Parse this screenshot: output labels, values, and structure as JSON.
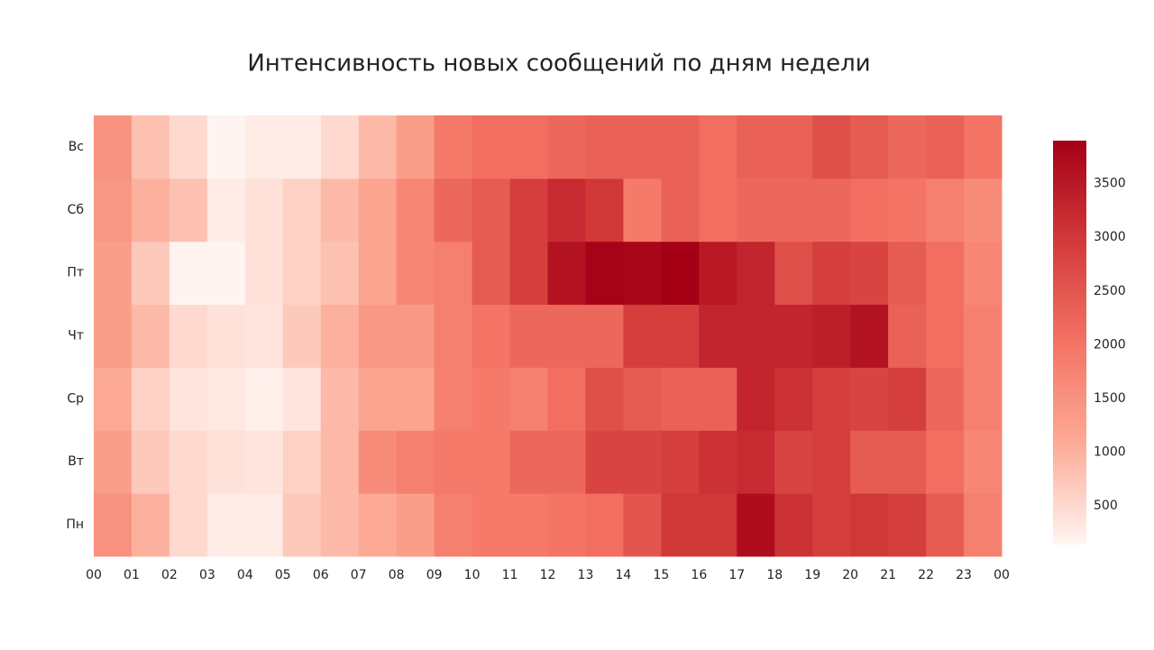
{
  "chart_data": {
    "type": "heatmap",
    "title": "Интенсивность новых сообщений по дням недели",
    "categories": [
      "Пн",
      "Вт",
      "Ср",
      "Чт",
      "Пт",
      "Сб",
      "Вс"
    ],
    "xlim": [
      0,
      24
    ],
    "xticks": [
      {
        "value": 0,
        "label": "00"
      },
      {
        "value": 1,
        "label": "01"
      },
      {
        "value": 2,
        "label": "02"
      },
      {
        "value": 3,
        "label": "03"
      },
      {
        "value": 4,
        "label": "04"
      },
      {
        "value": 5,
        "label": "05"
      },
      {
        "value": 6,
        "label": "06"
      },
      {
        "value": 7,
        "label": "07"
      },
      {
        "value": 8,
        "label": "08"
      },
      {
        "value": 9,
        "label": "09"
      },
      {
        "value": 10,
        "label": "10"
      },
      {
        "value": 11,
        "label": "11"
      },
      {
        "value": 12,
        "label": "12"
      },
      {
        "value": 13,
        "label": "13"
      },
      {
        "value": 14,
        "label": "14"
      },
      {
        "value": 15,
        "label": "15"
      },
      {
        "value": 16,
        "label": "16"
      },
      {
        "value": 17,
        "label": "17"
      },
      {
        "value": 18,
        "label": "18"
      },
      {
        "value": 19,
        "label": "19"
      },
      {
        "value": 20,
        "label": "20"
      },
      {
        "value": 21,
        "label": "21"
      },
      {
        "value": 22,
        "label": "22"
      },
      {
        "value": 23,
        "label": "23"
      },
      {
        "value": 24,
        "label": "00"
      }
    ],
    "z": [
      [
        1500,
        1000,
        500,
        250,
        250,
        700,
        900,
        1100,
        1300,
        1800,
        1900,
        1900,
        2000,
        2100,
        2500,
        3000,
        3000,
        3700,
        3100,
        2900,
        3000,
        2900,
        2400,
        1800
      ],
      [
        1300,
        700,
        500,
        400,
        350,
        600,
        900,
        1600,
        1800,
        1900,
        1900,
        2200,
        2200,
        2800,
        2800,
        2900,
        3100,
        3200,
        2800,
        2900,
        2400,
        2400,
        2100,
        1700
      ],
      [
        1100,
        600,
        350,
        300,
        200,
        350,
        900,
        1200,
        1200,
        1800,
        1900,
        1800,
        2100,
        2600,
        2400,
        2300,
        2300,
        3300,
        3100,
        2900,
        2800,
        2900,
        2200,
        1800
      ],
      [
        1300,
        900,
        500,
        400,
        350,
        700,
        1000,
        1400,
        1400,
        1800,
        2000,
        2200,
        2200,
        2200,
        2900,
        2900,
        3300,
        3300,
        3300,
        3400,
        3600,
        2300,
        2100,
        1800
      ],
      [
        1300,
        700,
        150,
        150,
        400,
        600,
        800,
        1200,
        1700,
        1800,
        2400,
        2900,
        3600,
        3850,
        3800,
        3900,
        3500,
        3300,
        2600,
        2900,
        2800,
        2400,
        2100,
        1700
      ],
      [
        1400,
        1000,
        800,
        250,
        400,
        600,
        900,
        1200,
        1700,
        2200,
        2400,
        2900,
        3200,
        3000,
        1900,
        2300,
        2100,
        2200,
        2200,
        2200,
        2100,
        2000,
        1800,
        1600
      ],
      [
        1500,
        800,
        500,
        150,
        250,
        250,
        500,
        900,
        1300,
        1900,
        2100,
        2100,
        2200,
        2300,
        2300,
        2300,
        2100,
        2300,
        2300,
        2600,
        2400,
        2200,
        2300,
        2000
      ]
    ],
    "zlim": [
      140,
      3900
    ],
    "zticks": [
      500,
      1000,
      1500,
      2000,
      2500,
      3000,
      3500
    ],
    "colorscale": [
      "#fff5f2",
      "#fcab96",
      "#f47364",
      "#d23a3a",
      "#a50016"
    ]
  }
}
